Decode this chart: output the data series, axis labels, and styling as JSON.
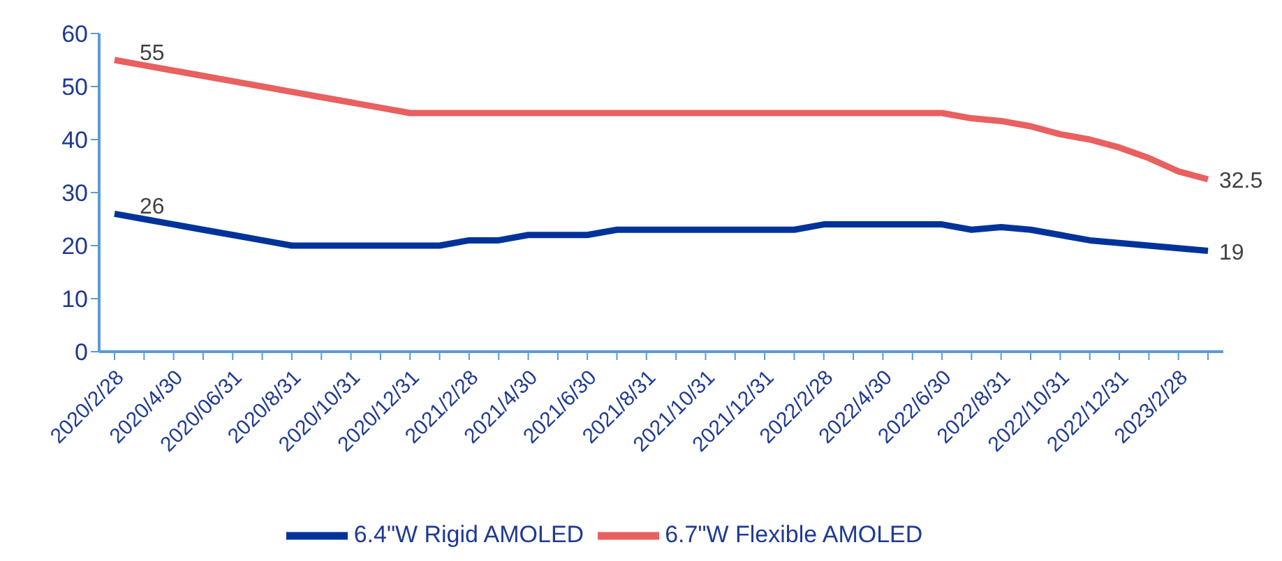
{
  "chart_data": {
    "type": "line",
    "categories": [
      "2020/2/28",
      null,
      "2020/4/30",
      null,
      "2020/06/31",
      null,
      "2020/8/31",
      null,
      "2020/10/31",
      null,
      "2020/12/31",
      null,
      "2021/2/28",
      null,
      "2021/4/30",
      null,
      "2021/6/30",
      null,
      "2021/8/31",
      null,
      "2021/10/31",
      null,
      "2021/12/31",
      null,
      "2022/2/28",
      null,
      "2022/4/30",
      null,
      "2022/6/30",
      null,
      "2022/8/31",
      null,
      "2022/10/31",
      null,
      "2022/12/31",
      null,
      "2023/2/28",
      null
    ],
    "series": [
      {
        "name": "6.4\"W Rigid AMOLED",
        "color": "#003399",
        "values": [
          26,
          25,
          24,
          23,
          22,
          21,
          20,
          20,
          20,
          20,
          20,
          20,
          21,
          21,
          22,
          22,
          22,
          23,
          23,
          23,
          23,
          23,
          23,
          23,
          24,
          24,
          24,
          24,
          24,
          23,
          23.5,
          23,
          22,
          21,
          20.5,
          20,
          19.5,
          19
        ],
        "value_labels": [
          "26",
          null,
          null,
          null,
          null,
          null,
          null,
          null,
          null,
          null,
          null,
          null,
          null,
          null,
          null,
          null,
          null,
          null,
          null,
          null,
          null,
          null,
          null,
          null,
          null,
          null,
          null,
          null,
          null,
          null,
          null,
          null,
          null,
          null,
          null,
          null,
          null,
          "19"
        ]
      },
      {
        "name": "6.7\"W Flexible AMOLED",
        "color": "#e86060",
        "values": [
          55,
          54,
          53,
          52,
          51,
          50,
          49,
          48,
          47,
          46,
          45,
          45,
          45,
          45,
          45,
          45,
          45,
          45,
          45,
          45,
          45,
          45,
          45,
          45,
          45,
          45,
          45,
          45,
          45,
          44,
          43.5,
          42.5,
          41,
          40,
          38.5,
          36.5,
          34,
          32.5
        ],
        "value_labels": [
          "55",
          null,
          null,
          null,
          null,
          null,
          null,
          null,
          null,
          null,
          null,
          null,
          null,
          null,
          null,
          null,
          null,
          null,
          null,
          null,
          null,
          null,
          null,
          null,
          null,
          null,
          null,
          null,
          null,
          null,
          null,
          null,
          null,
          null,
          null,
          null,
          null,
          "32.5"
        ]
      }
    ],
    "ylim": [
      0,
      60
    ],
    "yticks": [
      0,
      10,
      20,
      30,
      40,
      50,
      60
    ],
    "grid": false,
    "legend": "bottom",
    "marker": "none",
    "line_style": "solid"
  }
}
